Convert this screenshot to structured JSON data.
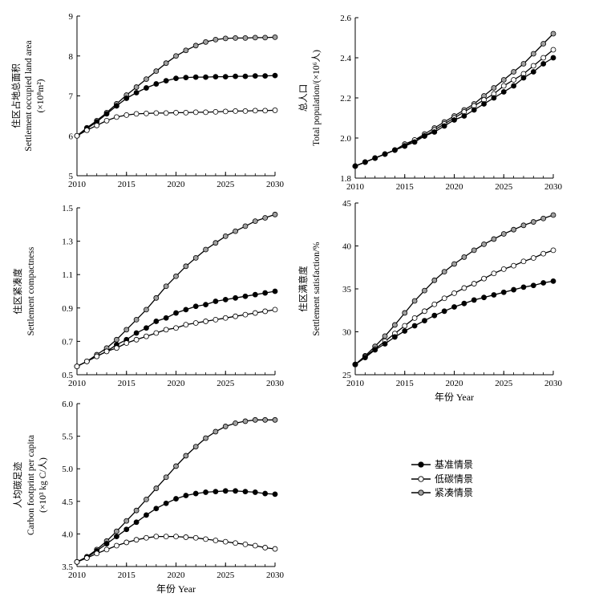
{
  "legend": [
    {
      "label": "基准情景",
      "fill": "#000000"
    },
    {
      "label": "低碳情景",
      "fill": "#ffffff"
    },
    {
      "label": "紧凑情景",
      "fill": "#a0a0a0"
    }
  ],
  "chart_data": [
    {
      "id": "land",
      "type": "line",
      "ylabel": [
        "住区占地总面积",
        "Settlement occupied land area",
        "(×10⁸m²)"
      ],
      "xlabel": "",
      "xlim": [
        2010,
        2030
      ],
      "ylim": [
        5,
        9
      ],
      "xticks": [
        2010,
        2015,
        2020,
        2025,
        2030
      ],
      "yticks": [
        5,
        6,
        7,
        8,
        9
      ],
      "yfmt": 0,
      "x": [
        2010,
        2011,
        2012,
        2013,
        2014,
        2015,
        2016,
        2017,
        2018,
        2019,
        2020,
        2021,
        2022,
        2023,
        2024,
        2025,
        2026,
        2027,
        2028,
        2029,
        2030
      ],
      "series": [
        {
          "name": "紧凑情景",
          "values": [
            6.0,
            6.2,
            6.38,
            6.58,
            6.8,
            7.02,
            7.22,
            7.42,
            7.62,
            7.82,
            8.0,
            8.14,
            8.26,
            8.35,
            8.41,
            8.44,
            8.45,
            8.45,
            8.46,
            8.46,
            8.47
          ]
        },
        {
          "name": "基准情景",
          "values": [
            6.0,
            6.18,
            6.35,
            6.55,
            6.75,
            6.94,
            7.08,
            7.2,
            7.3,
            7.38,
            7.44,
            7.46,
            7.47,
            7.47,
            7.48,
            7.48,
            7.49,
            7.49,
            7.5,
            7.5,
            7.51
          ]
        },
        {
          "name": "低碳情景",
          "values": [
            6.0,
            6.14,
            6.26,
            6.38,
            6.47,
            6.52,
            6.55,
            6.56,
            6.57,
            6.57,
            6.58,
            6.58,
            6.59,
            6.59,
            6.6,
            6.61,
            6.62,
            6.62,
            6.63,
            6.63,
            6.64
          ]
        }
      ]
    },
    {
      "id": "population",
      "type": "line",
      "ylabel": [
        "总人口",
        "Total population/(×10⁶人)"
      ],
      "xlabel": "",
      "xlim": [
        2010,
        2030
      ],
      "ylim": [
        1.8,
        2.6
      ],
      "xticks": [
        2010,
        2015,
        2020,
        2025,
        2030
      ],
      "yticks": [
        1.8,
        2.0,
        2.2,
        2.4,
        2.6
      ],
      "yfmt": 1,
      "x": [
        2010,
        2011,
        2012,
        2013,
        2014,
        2015,
        2016,
        2017,
        2018,
        2019,
        2020,
        2021,
        2022,
        2023,
        2024,
        2025,
        2026,
        2027,
        2028,
        2029,
        2030
      ],
      "series": [
        {
          "name": "紧凑情景",
          "values": [
            1.86,
            1.88,
            1.9,
            1.92,
            1.94,
            1.97,
            1.99,
            2.02,
            2.05,
            2.08,
            2.11,
            2.14,
            2.17,
            2.21,
            2.25,
            2.29,
            2.33,
            2.37,
            2.42,
            2.47,
            2.52
          ]
        },
        {
          "name": "低碳情景",
          "values": [
            1.86,
            1.88,
            1.9,
            1.92,
            1.94,
            1.96,
            1.99,
            2.01,
            2.04,
            2.07,
            2.1,
            2.13,
            2.16,
            2.19,
            2.22,
            2.26,
            2.29,
            2.32,
            2.36,
            2.4,
            2.44
          ]
        },
        {
          "name": "基准情景",
          "values": [
            1.86,
            1.88,
            1.9,
            1.92,
            1.94,
            1.96,
            1.98,
            2.01,
            2.03,
            2.06,
            2.09,
            2.11,
            2.14,
            2.17,
            2.2,
            2.23,
            2.26,
            2.3,
            2.33,
            2.37,
            2.4
          ]
        }
      ]
    },
    {
      "id": "compactness",
      "type": "line",
      "ylabel": [
        "住区紧凑度",
        "Settlement compactness"
      ],
      "xlabel": "",
      "xlim": [
        2010,
        2030
      ],
      "ylim": [
        0.5,
        1.5
      ],
      "xticks": [
        2010,
        2015,
        2020,
        2025,
        2030
      ],
      "yticks": [
        0.5,
        0.7,
        0.9,
        1.1,
        1.3,
        1.5
      ],
      "yfmt": 1,
      "x": [
        2010,
        2011,
        2012,
        2013,
        2014,
        2015,
        2016,
        2017,
        2018,
        2019,
        2020,
        2021,
        2022,
        2023,
        2024,
        2025,
        2026,
        2027,
        2028,
        2029,
        2030
      ],
      "series": [
        {
          "name": "紧凑情景",
          "values": [
            0.55,
            0.58,
            0.62,
            0.66,
            0.71,
            0.77,
            0.83,
            0.89,
            0.96,
            1.03,
            1.09,
            1.15,
            1.2,
            1.25,
            1.29,
            1.33,
            1.36,
            1.39,
            1.42,
            1.44,
            1.46
          ]
        },
        {
          "name": "基准情景",
          "values": [
            0.55,
            0.58,
            0.61,
            0.64,
            0.68,
            0.71,
            0.75,
            0.78,
            0.82,
            0.84,
            0.87,
            0.89,
            0.91,
            0.92,
            0.94,
            0.95,
            0.96,
            0.97,
            0.98,
            0.99,
            1.0
          ]
        },
        {
          "name": "低碳情景",
          "values": [
            0.55,
            0.58,
            0.61,
            0.64,
            0.66,
            0.69,
            0.71,
            0.73,
            0.75,
            0.77,
            0.78,
            0.8,
            0.81,
            0.82,
            0.83,
            0.84,
            0.85,
            0.86,
            0.87,
            0.88,
            0.89
          ]
        }
      ]
    },
    {
      "id": "satisfaction",
      "type": "line",
      "ylabel": [
        "住区满意度",
        "Settlement satisfaction/%"
      ],
      "xlabel": "年份 Year",
      "xlim": [
        2010,
        2030
      ],
      "ylim": [
        25,
        45
      ],
      "xticks": [
        2010,
        2015,
        2020,
        2025,
        2030
      ],
      "yticks": [
        25,
        30,
        35,
        40,
        45
      ],
      "yfmt": 0,
      "x": [
        2010,
        2011,
        2012,
        2013,
        2014,
        2015,
        2016,
        2017,
        2018,
        2019,
        2020,
        2021,
        2022,
        2023,
        2024,
        2025,
        2026,
        2027,
        2028,
        2029,
        2030
      ],
      "series": [
        {
          "name": "紧凑情景",
          "values": [
            26.2,
            27.2,
            28.3,
            29.5,
            30.8,
            32.2,
            33.6,
            34.8,
            36.0,
            37.0,
            37.9,
            38.7,
            39.5,
            40.2,
            40.8,
            41.4,
            41.9,
            42.4,
            42.8,
            43.2,
            43.6
          ]
        },
        {
          "name": "低碳情景",
          "values": [
            26.2,
            27.1,
            28.0,
            28.9,
            29.8,
            30.7,
            31.6,
            32.4,
            33.2,
            33.9,
            34.5,
            35.1,
            35.6,
            36.2,
            36.8,
            37.3,
            37.7,
            38.2,
            38.6,
            39.1,
            39.5
          ]
        },
        {
          "name": "基准情景",
          "values": [
            26.2,
            27.0,
            27.9,
            28.6,
            29.4,
            30.1,
            30.7,
            31.3,
            31.9,
            32.4,
            32.9,
            33.3,
            33.7,
            34.0,
            34.3,
            34.6,
            34.9,
            35.2,
            35.4,
            35.7,
            35.9
          ]
        }
      ]
    },
    {
      "id": "carbon",
      "type": "line",
      "ylabel": [
        "人均碳足迹",
        "Carbon footprint per capita",
        "(×10³ kg C/人)"
      ],
      "xlabel": "年份 Year",
      "xlim": [
        2010,
        2030
      ],
      "ylim": [
        3.5,
        6.0
      ],
      "xticks": [
        2010,
        2015,
        2020,
        2025,
        2030
      ],
      "yticks": [
        3.5,
        4.0,
        4.5,
        5.0,
        5.5,
        6.0
      ],
      "yfmt": 1,
      "x": [
        2010,
        2011,
        2012,
        2013,
        2014,
        2015,
        2016,
        2017,
        2018,
        2019,
        2020,
        2021,
        2022,
        2023,
        2024,
        2025,
        2026,
        2027,
        2028,
        2029,
        2030
      ],
      "series": [
        {
          "name": "紧凑情景",
          "values": [
            3.57,
            3.65,
            3.76,
            3.89,
            4.04,
            4.2,
            4.36,
            4.53,
            4.7,
            4.87,
            5.04,
            5.2,
            5.34,
            5.47,
            5.57,
            5.65,
            5.7,
            5.73,
            5.75,
            5.75,
            5.75
          ]
        },
        {
          "name": "基准情景",
          "values": [
            3.57,
            3.64,
            3.74,
            3.85,
            3.96,
            4.07,
            4.18,
            4.29,
            4.39,
            4.47,
            4.54,
            4.59,
            4.62,
            4.64,
            4.65,
            4.66,
            4.66,
            4.65,
            4.64,
            4.62,
            4.61
          ]
        },
        {
          "name": "低碳情景",
          "values": [
            3.57,
            3.63,
            3.7,
            3.76,
            3.82,
            3.87,
            3.91,
            3.94,
            3.96,
            3.96,
            3.96,
            3.95,
            3.94,
            3.92,
            3.9,
            3.88,
            3.86,
            3.84,
            3.82,
            3.79,
            3.77
          ]
        }
      ]
    }
  ]
}
